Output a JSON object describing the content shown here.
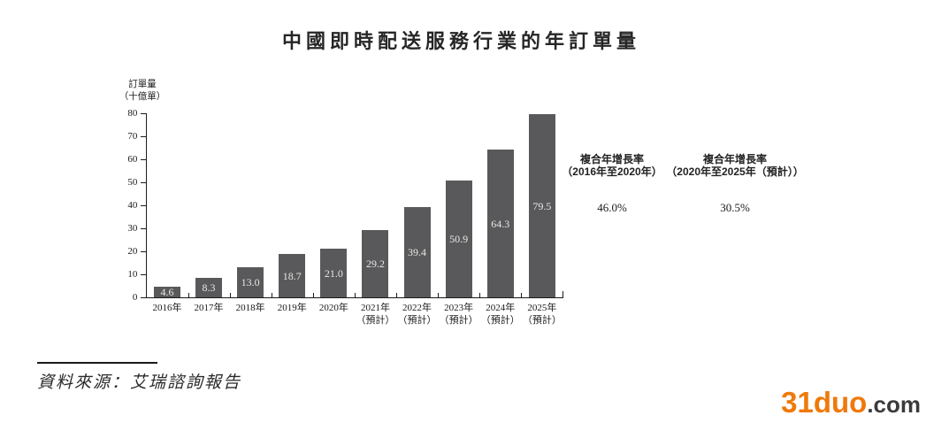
{
  "title": "中國即時配送服務行業的年訂單量",
  "chart_data": {
    "type": "bar",
    "title": "中國即時配送服務行業的年訂單量",
    "ylabel_lines": [
      "訂單量",
      "（十億單）"
    ],
    "categories": [
      "2016年",
      "2017年",
      "2018年",
      "2019年",
      "2020年",
      "2021年",
      "2022年",
      "2023年",
      "2024年",
      "2025年"
    ],
    "category_sublabels": [
      "",
      "",
      "",
      "",
      "",
      "（預計）",
      "（預計）",
      "（預計）",
      "（預計）",
      "（預計）"
    ],
    "values": [
      4.6,
      8.3,
      13.0,
      18.7,
      21.0,
      29.2,
      39.4,
      50.9,
      64.3,
      79.5
    ],
    "value_labels": [
      "4.6",
      "8.3",
      "13.0",
      "18.7",
      "21.0",
      "29.2",
      "39.4",
      "50.9",
      "64.3",
      "79.5"
    ],
    "ylim": [
      0,
      80
    ],
    "yticks": [
      0,
      10,
      20,
      30,
      40,
      50,
      60,
      70,
      80
    ],
    "grid": false,
    "legend": false,
    "bar_color": "#59595b",
    "bar_label_color": "#e8e7e4",
    "axis_color": "#1a1a1a"
  },
  "annotations": [
    {
      "title_line1": "複合年增長率",
      "title_line2": "（2016年至2020年）",
      "value": "46.0%"
    },
    {
      "title_line1": "複合年增長率",
      "title_line2": "（2020年至2025年（預計））",
      "value": "30.5%"
    }
  ],
  "source": {
    "text": "資料來源：艾瑞諮詢報告"
  },
  "watermark": {
    "brand": "31duo",
    "suffix": ".com",
    "brand_color": "#f0790a",
    "suffix_color": "#3b3b3b"
  }
}
